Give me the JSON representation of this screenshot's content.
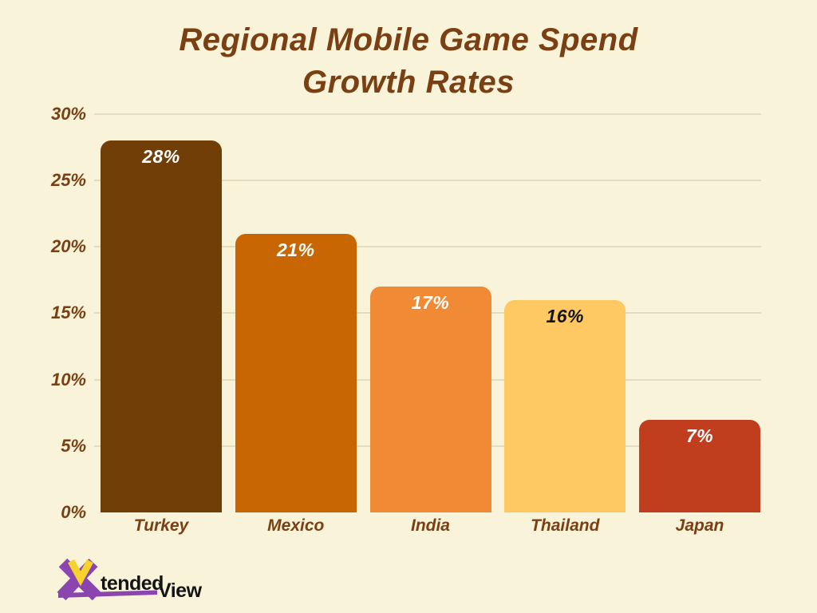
{
  "title": {
    "line1": "Regional Mobile Game Spend",
    "line2": "Growth Rates"
  },
  "chart_data": {
    "type": "bar",
    "title": "Regional Mobile Game Spend Growth Rates",
    "categories": [
      "Turkey",
      "Mexico",
      "India",
      "Thailand",
      "Japan"
    ],
    "values": [
      28,
      21,
      17,
      16,
      7
    ],
    "value_labels": [
      "28%",
      "21%",
      "17%",
      "16%",
      "7%"
    ],
    "bar_colors": [
      "#723E07",
      "#C96604",
      "#F08A35",
      "#FEC962",
      "#C03D1E"
    ],
    "value_label_colors": [
      "#FFFFFF",
      "#FFFFFF",
      "#FFFFFF",
      "#141414",
      "#FFFFFF"
    ],
    "xlabel": "",
    "ylabel": "",
    "ylim": [
      0,
      30
    ],
    "ytick_values": [
      30,
      25,
      20,
      15,
      10,
      5,
      0
    ],
    "ytick_labels": [
      "30%",
      "25%",
      "20%",
      "15%",
      "10%",
      "5%",
      "0%"
    ],
    "grid": true,
    "legend": false,
    "background_color": "#F8F3D9",
    "axis_text_color": "#7A4013",
    "gridline_color": "#E4DCBE"
  },
  "logo": {
    "tended": "tended",
    "view": "View",
    "x_color": "#8A46AE",
    "v_color": "#F6D32C",
    "text_color": "#141414"
  }
}
